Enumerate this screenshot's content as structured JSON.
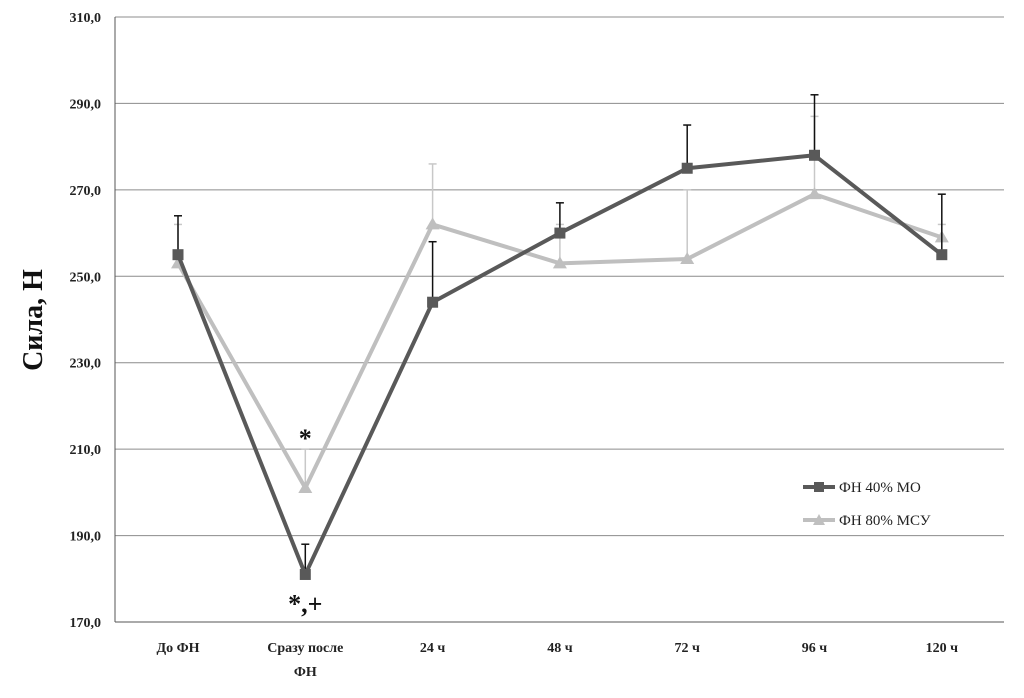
{
  "chart_data": {
    "type": "line",
    "title": "",
    "xlabel": "",
    "ylabel": "Сила, Н",
    "ylim": [
      170,
      310
    ],
    "yticks": [
      "170,0",
      "190,0",
      "210,0",
      "230,0",
      "250,0",
      "270,0",
      "290,0",
      "310,0"
    ],
    "ytick_values": [
      170,
      190,
      210,
      230,
      250,
      270,
      290,
      310
    ],
    "categories": [
      [
        "До ФН"
      ],
      [
        "Сразу после",
        "ФН"
      ],
      [
        "24 ч"
      ],
      [
        "48 ч"
      ],
      [
        "72 ч"
      ],
      [
        "96 ч"
      ],
      [
        "120 ч"
      ]
    ],
    "grid": true,
    "legend_position": "right",
    "series": [
      {
        "name": "ФН 40% МО",
        "color": "#595959",
        "error_color": "#111111",
        "values": [
          255,
          181,
          244,
          260,
          275,
          278,
          255
        ],
        "error_upper": [
          264,
          188,
          258,
          267,
          285,
          292,
          269
        ]
      },
      {
        "name": "ФН 80% МСУ",
        "color": "#bfbfbf",
        "error_color": "#c8c8c8",
        "values": [
          253,
          201,
          262,
          253,
          254,
          269,
          259
        ],
        "error_upper": [
          262,
          210,
          276,
          262,
          270,
          287,
          262
        ]
      }
    ],
    "annotations": [
      {
        "text": "*",
        "category_index": 1,
        "series_index": 1,
        "placement": "above"
      },
      {
        "text": "*,+",
        "category_index": 1,
        "series_index": 0,
        "placement": "below"
      }
    ]
  }
}
